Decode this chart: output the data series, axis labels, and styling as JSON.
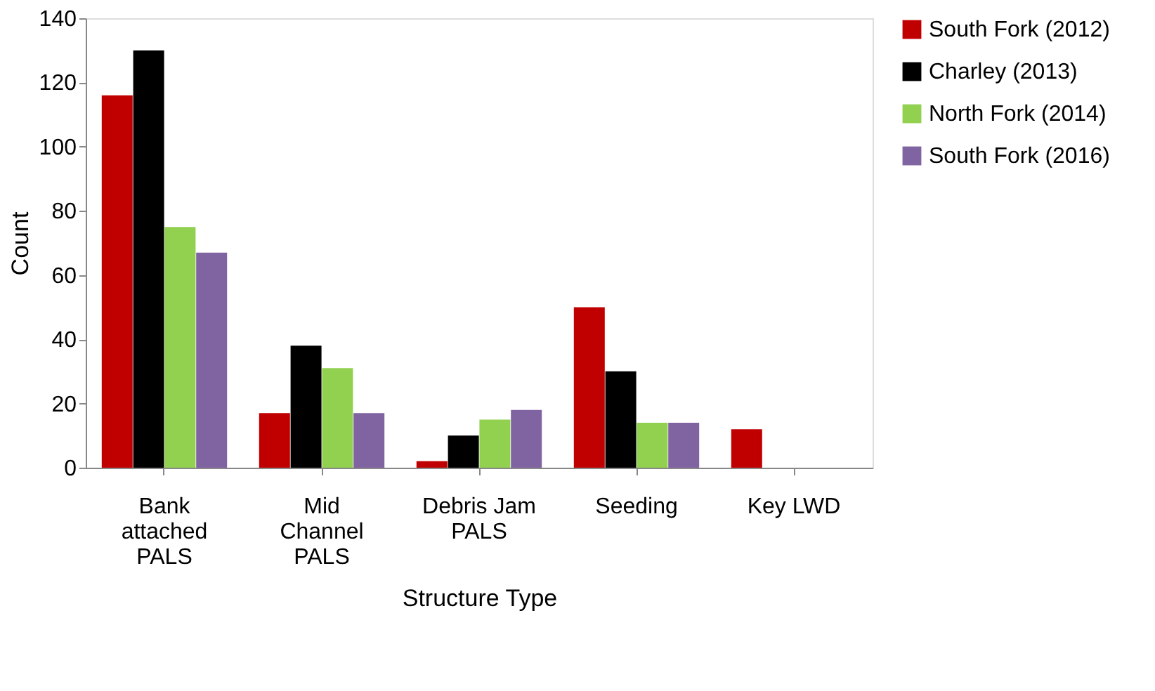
{
  "chart_data": {
    "type": "bar",
    "xlabel": "Structure Type",
    "ylabel": "Count",
    "categories": [
      "Bank attached PALS",
      "Mid Channel PALS",
      "Debris Jam PALS",
      "Seeding",
      "Key LWD"
    ],
    "series": [
      {
        "name": "South Fork (2012)",
        "color": "#c00000",
        "values": [
          116,
          17,
          2,
          50,
          12
        ]
      },
      {
        "name": "Charley (2013)",
        "color": "#000000",
        "values": [
          130,
          38,
          10,
          30,
          null
        ]
      },
      {
        "name": "North Fork (2014)",
        "color": "#92d050",
        "values": [
          75,
          31,
          15,
          14,
          null
        ]
      },
      {
        "name": "South Fork (2016)",
        "color": "#8064a2",
        "values": [
          67,
          17,
          18,
          14,
          null
        ]
      }
    ],
    "ylim": [
      0,
      140
    ],
    "yticks": [
      0,
      20,
      40,
      60,
      80,
      100,
      120,
      140
    ],
    "grid": false,
    "legend": "right"
  }
}
